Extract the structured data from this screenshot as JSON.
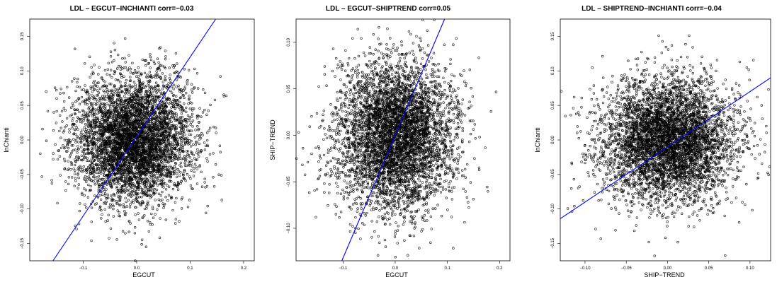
{
  "chart_data": [
    {
      "type": "scatter",
      "title": "LDL – EGCUT–INCHIANTI   corr=−0.03",
      "xlabel": "EGCUT",
      "ylabel": "InChianti",
      "xlim": [
        -0.2,
        0.22
      ],
      "ylim": [
        -0.175,
        0.175
      ],
      "xticks": [
        {
          "value": -0.1,
          "label": "−0.1"
        },
        {
          "value": 0.0,
          "label": "0.0"
        },
        {
          "value": 0.1,
          "label": "0.1"
        },
        {
          "value": 0.2,
          "label": "0.2"
        }
      ],
      "yticks": [
        {
          "value": -0.15,
          "label": "−0.15"
        },
        {
          "value": -0.1,
          "label": "−0.10"
        },
        {
          "value": -0.05,
          "label": "−0.05"
        },
        {
          "value": 0.0,
          "label": "0.00"
        },
        {
          "value": 0.05,
          "label": "0.05"
        },
        {
          "value": 0.1,
          "label": "0.10"
        },
        {
          "value": 0.15,
          "label": "0.15"
        }
      ],
      "points": {
        "n": 5000,
        "mean_x": -0.005,
        "mean_y": 0.0,
        "sd_x": 0.055,
        "sd_y": 0.045
      },
      "fit_line": {
        "slope": 1.15,
        "intercept": 0.005,
        "color": "#0000ff"
      }
    },
    {
      "type": "scatter",
      "title": "LDL – EGCUT–SHIPTREND   corr=0.05",
      "xlabel": "EGCUT",
      "ylabel": "SHIP−TREND",
      "xlim": [
        -0.19,
        0.22
      ],
      "ylim": [
        -0.135,
        0.125
      ],
      "xticks": [
        {
          "value": -0.1,
          "label": "−0.1"
        },
        {
          "value": 0.0,
          "label": "0.0"
        },
        {
          "value": 0.1,
          "label": "0.1"
        },
        {
          "value": 0.2,
          "label": "0.2"
        }
      ],
      "yticks": [
        {
          "value": -0.1,
          "label": "−0.10"
        },
        {
          "value": -0.05,
          "label": "−0.05"
        },
        {
          "value": 0.0,
          "label": "0.00"
        },
        {
          "value": 0.05,
          "label": "0.05"
        },
        {
          "value": 0.1,
          "label": "0.10"
        }
      ],
      "points": {
        "n": 5000,
        "mean_x": 0.0,
        "mean_y": 0.0,
        "sd_x": 0.055,
        "sd_y": 0.04
      },
      "fit_line": {
        "slope": 1.32,
        "intercept": 0.0,
        "color": "#0000ff"
      }
    },
    {
      "type": "scatter",
      "title": "LDL – SHIPTREND–INCHIANTI   corr=−0.04",
      "xlabel": "SHIP−TREND",
      "ylabel": "InChianti",
      "xlim": [
        -0.13,
        0.125
      ],
      "ylim": [
        -0.175,
        0.175
      ],
      "xticks": [
        {
          "value": -0.1,
          "label": "−0.10"
        },
        {
          "value": -0.05,
          "label": "−0.05"
        },
        {
          "value": 0.0,
          "label": "0.00"
        },
        {
          "value": 0.05,
          "label": "0.05"
        },
        {
          "value": 0.1,
          "label": "0.10"
        }
      ],
      "yticks": [
        {
          "value": -0.15,
          "label": "−0.15"
        },
        {
          "value": -0.1,
          "label": "−0.10"
        },
        {
          "value": -0.05,
          "label": "−0.05"
        },
        {
          "value": 0.0,
          "label": "0.00"
        },
        {
          "value": 0.05,
          "label": "0.05"
        },
        {
          "value": 0.1,
          "label": "0.10"
        },
        {
          "value": 0.15,
          "label": "0.15"
        }
      ],
      "points": {
        "n": 5000,
        "mean_x": 0.0,
        "mean_y": 0.0,
        "sd_x": 0.04,
        "sd_y": 0.045
      },
      "fit_line": {
        "slope": 0.8,
        "intercept": -0.01,
        "color": "#0000ff"
      }
    }
  ]
}
